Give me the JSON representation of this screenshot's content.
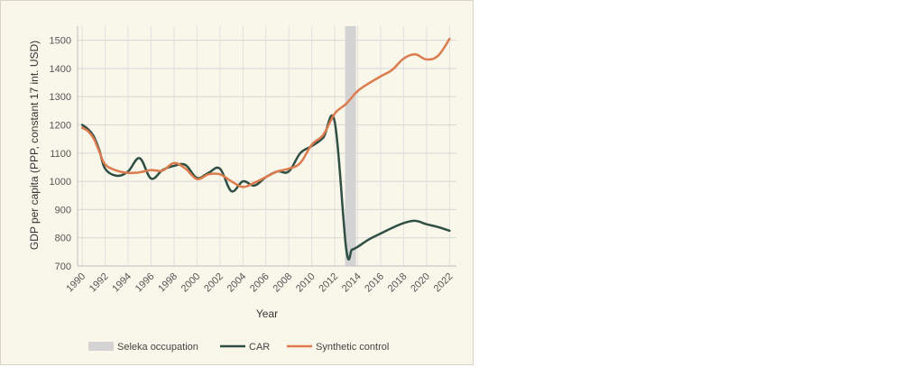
{
  "chart_data": {
    "type": "line",
    "title": "",
    "xlabel": "Year",
    "ylabel": "GDP per capita (PPP, constant 17 int. USD)",
    "xlim": [
      1989.6,
      2022.6
    ],
    "ylim": [
      700,
      1550
    ],
    "yticks": [
      700,
      800,
      900,
      1000,
      1100,
      1200,
      1300,
      1400,
      1500
    ],
    "xticks": [
      1990,
      1992,
      1994,
      1996,
      1998,
      2000,
      2002,
      2004,
      2006,
      2008,
      2010,
      2012,
      2014,
      2016,
      2018,
      2020,
      2022
    ],
    "grid": true,
    "shaded_region": {
      "name": "Seleka occupation",
      "x_start": 2012.9,
      "x_end": 2013.85,
      "color": "#d3d3d3"
    },
    "series": [
      {
        "name": "CAR",
        "color": "#2f4f44",
        "x": [
          1990,
          1990.5,
          1991,
          1991.5,
          1992,
          1993,
          1994,
          1995,
          1996,
          1997,
          1998,
          1999,
          2000,
          2001,
          2002,
          2003,
          2004,
          2005,
          2006,
          2007,
          2008,
          2009,
          2010,
          2011,
          2012,
          2013,
          2013.5,
          2014,
          2015,
          2016,
          2017,
          2018,
          2019,
          2020,
          2021,
          2022
        ],
        "y": [
          1200,
          1185,
          1160,
          1110,
          1045,
          1020,
          1035,
          1082,
          1010,
          1040,
          1055,
          1058,
          1012,
          1030,
          1045,
          965,
          1000,
          985,
          1015,
          1035,
          1035,
          1100,
          1125,
          1155,
          1210,
          760,
          758,
          768,
          795,
          815,
          835,
          852,
          860,
          848,
          838,
          825
        ]
      },
      {
        "name": "Synthetic control",
        "color": "#dc7b4e",
        "x": [
          1990,
          1990.5,
          1991,
          1991.5,
          1992,
          1993,
          1994,
          1995,
          1996,
          1997,
          1998,
          1999,
          2000,
          2001,
          2002,
          2003,
          2004,
          2005,
          2006,
          2007,
          2008,
          2009,
          2010,
          2011,
          2012,
          2013,
          2014,
          2015,
          2016,
          2017,
          2018,
          2019,
          2020,
          2021,
          2022
        ],
        "y": [
          1190,
          1178,
          1152,
          1105,
          1060,
          1038,
          1030,
          1032,
          1040,
          1038,
          1065,
          1045,
          1008,
          1025,
          1025,
          1000,
          980,
          995,
          1015,
          1035,
          1045,
          1065,
          1130,
          1165,
          1240,
          1275,
          1320,
          1348,
          1372,
          1395,
          1435,
          1450,
          1432,
          1445,
          1505
        ]
      }
    ],
    "legend": {
      "position": "bottom",
      "entries": [
        {
          "label": "Seleka occupation",
          "type": "rect",
          "color": "#d3d3d3"
        },
        {
          "label": "CAR",
          "type": "line",
          "color": "#2f4f44"
        },
        {
          "label": "Synthetic control",
          "type": "line",
          "color": "#dc7b4e"
        }
      ]
    }
  }
}
